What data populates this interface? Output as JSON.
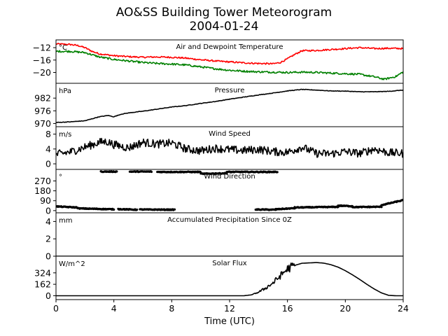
{
  "figure": {
    "title_line1": "AO&SS Building Tower Meteorogram",
    "title_line2": "2004-01-24",
    "xlabel": "Time (UTC)"
  },
  "chart_data": [
    {
      "type": "line",
      "title": "Air and Dewpoint Temperature",
      "unit_label": "°C",
      "xlim": [
        0,
        24
      ],
      "ylim": [
        -23.5,
        -9.5
      ],
      "yticks": [
        -12,
        -16,
        -20
      ],
      "ytick_labels": [
        "−12",
        "−16",
        "−20"
      ],
      "series": [
        {
          "color": "#ff0000",
          "x": [
            0,
            0.5,
            1,
            1.5,
            2,
            2.5,
            3,
            4,
            5,
            6,
            7,
            8,
            9,
            10,
            11,
            12,
            13,
            14,
            15,
            15.5,
            16,
            16.5,
            17,
            18,
            19,
            20,
            21,
            22,
            23,
            24
          ],
          "y": [
            -10.8,
            -10.9,
            -11.0,
            -11.3,
            -12.0,
            -13.2,
            -14.0,
            -14.6,
            -14.9,
            -15.1,
            -15.0,
            -15.1,
            -15.4,
            -15.9,
            -16.3,
            -16.6,
            -16.9,
            -17.1,
            -17.2,
            -16.8,
            -15.6,
            -14.2,
            -13.0,
            -12.9,
            -12.6,
            -12.3,
            -12.0,
            -12.3,
            -12.2,
            -12.3
          ],
          "noise": 0.25
        },
        {
          "color": "#008000",
          "x": [
            0,
            1,
            2,
            3,
            4,
            5,
            6,
            7,
            8,
            9,
            10,
            11,
            12,
            13,
            14,
            15,
            16,
            17,
            18,
            19,
            20,
            21,
            22,
            22.7,
            23.5,
            24
          ],
          "y": [
            -13.2,
            -13.2,
            -13.6,
            -15.0,
            -15.8,
            -16.3,
            -16.8,
            -17.1,
            -17.3,
            -17.6,
            -18.2,
            -18.8,
            -19.3,
            -19.6,
            -19.8,
            -19.9,
            -20.0,
            -19.9,
            -20.0,
            -20.2,
            -20.4,
            -20.6,
            -21.4,
            -22.2,
            -21.3,
            -19.8
          ],
          "noise": 0.3
        }
      ]
    },
    {
      "type": "line",
      "title": "Pressure",
      "unit_label": "hPa",
      "xlim": [
        0,
        24
      ],
      "ylim": [
        968.5,
        989
      ],
      "yticks": [
        982,
        976,
        970
      ],
      "ytick_labels": [
        "982",
        "976",
        "970"
      ],
      "series": [
        {
          "color": "#000000",
          "x": [
            0,
            1,
            2,
            3,
            3.6,
            4,
            4.5,
            5,
            6,
            7,
            8,
            9,
            10,
            11,
            12,
            13,
            14,
            15,
            16,
            17,
            18,
            19,
            20,
            21,
            22,
            23,
            24
          ],
          "y": [
            970.5,
            970.8,
            971.3,
            973.2,
            973.8,
            973.2,
            974.4,
            975.0,
            975.8,
            976.8,
            977.8,
            978.5,
            979.5,
            980.4,
            981.5,
            982.5,
            983.5,
            984.4,
            985.4,
            986.1,
            985.8,
            985.4,
            985.3,
            985.0,
            985.0,
            985.2,
            985.8
          ],
          "noise": 0.12
        }
      ]
    },
    {
      "type": "line",
      "title": "Wind Speed",
      "unit_label": "m/s",
      "xlim": [
        0,
        24
      ],
      "ylim": [
        -1.5,
        10
      ],
      "yticks": [
        8,
        4,
        0
      ],
      "ytick_labels": [
        "8",
        "4",
        "0"
      ],
      "series": [
        {
          "color": "#000000",
          "x": [
            0,
            1,
            2,
            3,
            3.5,
            4,
            5,
            6,
            7,
            8,
            9,
            10,
            11,
            12,
            13,
            14,
            15,
            16,
            17,
            18,
            19,
            20,
            21,
            22,
            23,
            24
          ],
          "y": [
            2.5,
            3.2,
            4.5,
            5.8,
            6.0,
            5.2,
            4.3,
            5.8,
            5.3,
            5.6,
            4.0,
            3.5,
            4.2,
            3.8,
            3.6,
            3.9,
            3.3,
            3.1,
            4.5,
            2.8,
            2.7,
            3.3,
            2.8,
            4.0,
            3.0,
            2.8
          ],
          "noise": 1.1
        }
      ]
    },
    {
      "type": "scatter",
      "title": "Wind Direction",
      "unit_label": "°",
      "xlim": [
        0,
        24
      ],
      "ylim": [
        -20,
        375
      ],
      "yticks": [
        270,
        180,
        90,
        0
      ],
      "ytick_labels": [
        "270",
        "180",
        "90",
        "0"
      ],
      "series": [
        {
          "color": "#000000",
          "segments": [
            {
              "x": [
                3.1,
                4.2
              ],
              "y": [
                355,
                355
              ]
            },
            {
              "x": [
                5.1,
                6.6
              ],
              "y": [
                355,
                355
              ]
            },
            {
              "x": [
                7.0,
                10.0
              ],
              "y": [
                352,
                352
              ]
            },
            {
              "x": [
                10.0,
                11.8
              ],
              "y": [
                335,
                340
              ]
            },
            {
              "x": [
                11.8,
                15.3
              ],
              "y": [
                352,
                352
              ]
            },
            {
              "x": [
                0,
                1.5
              ],
              "y": [
                38,
                28
              ]
            },
            {
              "x": [
                1.5,
                4.0
              ],
              "y": [
                20,
                12
              ]
            },
            {
              "x": [
                4.3,
                5.6
              ],
              "y": [
                14,
                8
              ]
            },
            {
              "x": [
                5.8,
                8.2
              ],
              "y": [
                10,
                8
              ]
            },
            {
              "x": [
                13.8,
                15.2
              ],
              "y": [
                10,
                8
              ]
            },
            {
              "x": [
                15.2,
                16.5
              ],
              "y": [
                12,
                22
              ]
            },
            {
              "x": [
                16.5,
                18.5
              ],
              "y": [
                28,
                32
              ]
            },
            {
              "x": [
                18.5,
                19.5
              ],
              "y": [
                32,
                34
              ]
            },
            {
              "x": [
                19.5,
                20.5
              ],
              "y": [
                45,
                40
              ]
            },
            {
              "x": [
                20.5,
                22.5
              ],
              "y": [
                32,
                35
              ]
            },
            {
              "x": [
                22.5,
                24.0
              ],
              "y": [
                50,
                95
              ]
            }
          ],
          "noise": 7
        }
      ]
    },
    {
      "type": "line",
      "title": "Accumulated Precipitation Since 0Z",
      "unit_label": "mm",
      "xlim": [
        0,
        24
      ],
      "ylim": [
        0,
        5
      ],
      "yticks": [
        4,
        2,
        0
      ],
      "ytick_labels": [
        "4",
        "2",
        "0"
      ],
      "series": [
        {
          "color": "#000000",
          "x": [
            0,
            24
          ],
          "y": [
            0,
            0
          ],
          "noise": 0
        }
      ]
    },
    {
      "type": "line",
      "title": "Solar Flux",
      "unit_label": "W/m^2",
      "xlim": [
        0,
        24
      ],
      "ylim": [
        -55,
        560
      ],
      "yticks": [
        324,
        162,
        0
      ],
      "ytick_labels": [
        "324",
        "162",
        "0"
      ],
      "series": [
        {
          "color": "#000000",
          "x": [
            0,
            13.0,
            13.5,
            14.0,
            14.5,
            15.0,
            15.5,
            16.0,
            16.5,
            17.0,
            17.5,
            18.0,
            18.5,
            19.0,
            19.5,
            20.0,
            20.5,
            21.0,
            21.5,
            22.0,
            22.5,
            23.0,
            23.5,
            24.0
          ],
          "y": [
            0,
            0,
            12,
            50,
            110,
            180,
            280,
            380,
            430,
            460,
            465,
            470,
            462,
            440,
            405,
            355,
            295,
            230,
            160,
            95,
            40,
            5,
            0,
            0
          ],
          "noise": 0,
          "noisy_x": [
            13.5,
            16.5
          ],
          "noisy_amp": 70
        }
      ]
    }
  ],
  "x_axis": {
    "ticks": [
      0,
      4,
      8,
      12,
      16,
      20,
      24
    ],
    "tick_labels": [
      "0",
      "4",
      "8",
      "12",
      "16",
      "20",
      "24"
    ]
  }
}
